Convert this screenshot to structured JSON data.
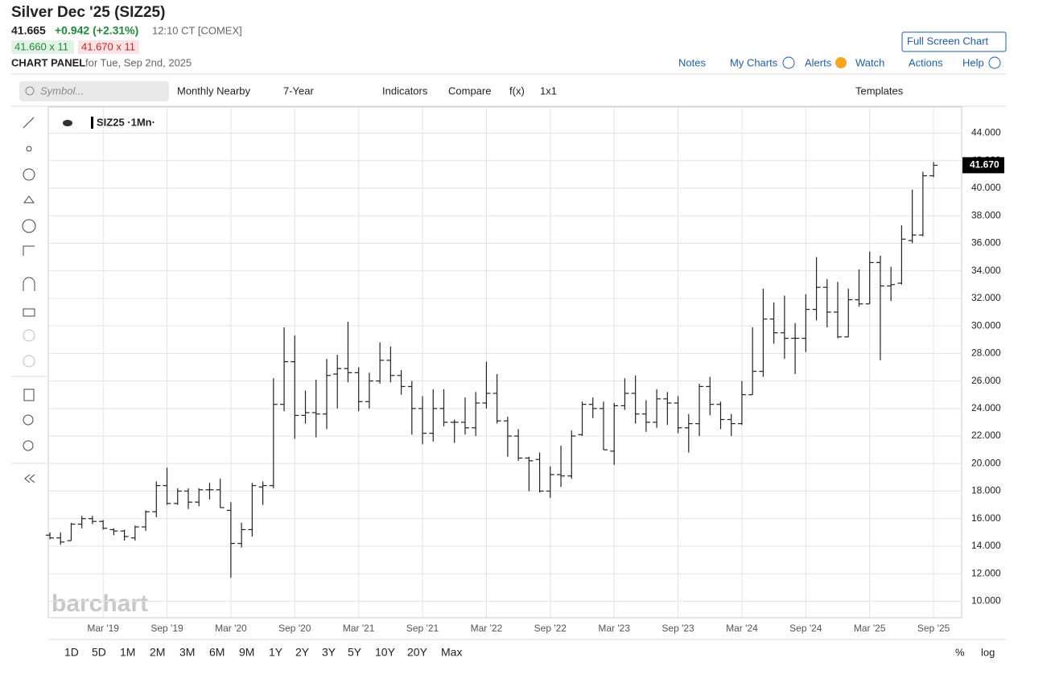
{
  "header": {
    "title": "Silver Dec '25 (SIZ25)",
    "last": "41.665",
    "change": "+0.942 (+2.31%)",
    "time": "12:10 CT [COMEX]",
    "bid": "41.660 x 11",
    "ask": "41.670 x 11",
    "panel": "CHART PANEL",
    "panel_date": "for Tue, Sep 2nd, 2025",
    "full_screen": "Full Screen Chart",
    "links": [
      "Notes",
      "My Charts",
      "Alerts",
      "Watch",
      "Actions",
      "Help"
    ]
  },
  "toolbar": {
    "symbol": "Symbol...",
    "items": [
      "Monthly Nearby",
      "7-Year",
      "Indicators",
      "Compare",
      "f(x)",
      "1x1"
    ],
    "templates": "Templates"
  },
  "ranges": [
    "1D",
    "5D",
    "1M",
    "2M",
    "3M",
    "6M",
    "9M",
    "1Y",
    "2Y",
    "3Y",
    "5Y",
    "10Y",
    "20Y",
    "Max"
  ],
  "footer": {
    "percent": "%",
    "log": "log"
  },
  "watermark": "barchart",
  "chart_data": {
    "type": "ohlc",
    "legend": "SIZ25 ·1Mn·",
    "color": "#222222",
    "x": [
      "2018-10",
      "2018-11",
      "2018-12",
      "2019-01",
      "2019-02",
      "2019-03",
      "2019-04",
      "2019-05",
      "2019-06",
      "2019-07",
      "2019-08",
      "2019-09",
      "2019-10",
      "2019-11",
      "2019-12",
      "2020-01",
      "2020-02",
      "2020-03",
      "2020-04",
      "2020-05",
      "2020-06",
      "2020-07",
      "2020-08",
      "2020-09",
      "2020-10",
      "2020-11",
      "2020-12",
      "2021-01",
      "2021-02",
      "2021-03",
      "2021-04",
      "2021-05",
      "2021-06",
      "2021-07",
      "2021-08",
      "2021-09",
      "2021-10",
      "2021-11",
      "2021-12",
      "2022-01",
      "2022-02",
      "2022-03",
      "2022-04",
      "2022-05",
      "2022-06",
      "2022-07",
      "2022-08",
      "2022-09",
      "2022-10",
      "2022-11",
      "2022-12",
      "2023-01",
      "2023-02",
      "2023-03",
      "2023-04",
      "2023-05",
      "2023-06",
      "2023-07",
      "2023-08",
      "2023-09",
      "2023-10",
      "2023-11",
      "2023-12",
      "2024-01",
      "2024-02",
      "2024-03",
      "2024-04",
      "2024-05",
      "2024-06",
      "2024-07",
      "2024-08",
      "2024-09",
      "2024-10",
      "2024-11",
      "2024-12",
      "2025-01",
      "2025-02",
      "2025-03",
      "2025-04",
      "2025-05",
      "2025-06",
      "2025-07",
      "2025-08",
      "2025-09"
    ],
    "open": [
      14.8,
      14.6,
      14.4,
      15.6,
      16.0,
      15.8,
      15.2,
      15.1,
      14.6,
      15.4,
      16.5,
      18.4,
      17.1,
      18.0,
      17.2,
      18.1,
      18.1,
      16.6,
      14.2,
      15.2,
      18.3,
      18.4,
      24.3,
      27.4,
      23.5,
      23.7,
      23.6,
      26.5,
      26.9,
      26.6,
      24.5,
      26.0,
      27.5,
      26.4,
      25.6,
      24.0,
      22.2,
      24.0,
      23.0,
      23.0,
      22.6,
      24.4,
      25.1,
      23.1,
      22.0,
      20.4,
      20.3,
      18.0,
      19.2,
      19.1,
      22.1,
      24.3,
      24.0,
      20.9,
      24.2,
      25.1,
      23.6,
      23.0,
      24.7,
      24.4,
      22.6,
      22.9,
      25.6,
      24.3,
      23.2,
      22.9,
      25.0,
      26.7,
      30.5,
      29.5,
      29.1,
      29.1,
      31.2,
      32.8,
      31.0,
      29.2,
      31.9,
      31.6,
      34.6,
      32.9,
      33.1,
      36.2,
      36.6,
      40.9
    ],
    "high": [
      15.0,
      15.0,
      15.7,
      16.2,
      16.2,
      15.9,
      15.3,
      15.2,
      15.5,
      16.6,
      18.7,
      19.7,
      18.2,
      18.2,
      18.2,
      18.6,
      18.9,
      17.2,
      15.7,
      18.6,
      18.7,
      26.2,
      29.9,
      29.3,
      25.3,
      26.1,
      27.6,
      27.9,
      30.3,
      27.0,
      26.6,
      28.8,
      28.5,
      26.8,
      26.0,
      24.9,
      25.4,
      25.4,
      23.2,
      24.8,
      25.2,
      27.4,
      26.5,
      23.4,
      22.5,
      20.5,
      20.8,
      19.8,
      21.3,
      22.4,
      24.5,
      24.8,
      24.5,
      24.4,
      26.2,
      26.4,
      24.6,
      25.4,
      25.2,
      24.9,
      23.6,
      25.8,
      26.3,
      24.5,
      23.6,
      26.0,
      29.9,
      32.7,
      31.7,
      32.2,
      30.2,
      32.3,
      35.0,
      33.4,
      33.2,
      32.7,
      34.1,
      35.4,
      35.1,
      34.3,
      37.3,
      39.9,
      41.2,
      41.9
    ],
    "low": [
      14.5,
      14.1,
      14.4,
      15.3,
      15.6,
      15.2,
      14.8,
      14.4,
      14.4,
      15.1,
      16.1,
      17.0,
      17.0,
      16.7,
      16.9,
      17.4,
      16.8,
      11.7,
      13.9,
      14.7,
      17.0,
      18.2,
      23.8,
      21.8,
      22.9,
      21.9,
      22.5,
      24.0,
      25.9,
      23.8,
      24.0,
      25.8,
      25.9,
      25.0,
      22.1,
      21.4,
      21.6,
      22.7,
      21.5,
      22.1,
      22.0,
      24.0,
      22.9,
      20.5,
      20.2,
      18.0,
      17.9,
      17.5,
      18.3,
      18.9,
      22.0,
      23.3,
      21.0,
      19.9,
      23.9,
      22.9,
      22.3,
      22.6,
      22.8,
      22.2,
      20.8,
      22.0,
      23.5,
      22.5,
      22.0,
      22.8,
      25.0,
      26.3,
      28.7,
      27.6,
      26.5,
      28.1,
      30.4,
      29.9,
      29.1,
      29.2,
      31.4,
      31.6,
      27.5,
      31.8,
      33.0,
      36.0,
      36.5,
      40.8
    ],
    "close": [
      14.6,
      14.3,
      15.6,
      16.0,
      15.8,
      15.3,
      15.1,
      14.7,
      15.4,
      16.5,
      18.4,
      17.1,
      18.0,
      17.2,
      18.1,
      18.1,
      16.8,
      14.2,
      15.2,
      18.4,
      18.4,
      24.3,
      27.4,
      23.5,
      23.7,
      23.6,
      26.4,
      26.9,
      26.6,
      24.5,
      26.0,
      27.5,
      26.4,
      25.6,
      24.0,
      22.2,
      24.0,
      23.0,
      23.0,
      22.6,
      24.4,
      25.1,
      23.1,
      22.0,
      20.4,
      20.2,
      18.0,
      19.2,
      19.1,
      22.0,
      24.3,
      24.0,
      21.0,
      24.2,
      25.1,
      23.6,
      23.0,
      24.7,
      24.4,
      22.6,
      22.9,
      25.6,
      24.3,
      23.2,
      22.9,
      25.0,
      26.7,
      30.5,
      29.5,
      29.1,
      29.1,
      31.2,
      32.8,
      31.0,
      29.2,
      31.9,
      31.6,
      34.6,
      32.9,
      33.0,
      36.3,
      36.6,
      40.9,
      41.665
    ],
    "last_price": {
      "value": 41.67,
      "label": "41.670"
    },
    "ylim": [
      8.8,
      45.9
    ],
    "yticks": [
      {
        "value": 10,
        "label": "10.000"
      },
      {
        "value": 12,
        "label": "12.000"
      },
      {
        "value": 14,
        "label": "14.000"
      },
      {
        "value": 16,
        "label": "16.000"
      },
      {
        "value": 18,
        "label": "18.000"
      },
      {
        "value": 20,
        "label": "20.000"
      },
      {
        "value": 22,
        "label": "22.000"
      },
      {
        "value": 24,
        "label": "24.000"
      },
      {
        "value": 26,
        "label": "26.000"
      },
      {
        "value": 28,
        "label": "28.000"
      },
      {
        "value": 30,
        "label": "30.000"
      },
      {
        "value": 32,
        "label": "32.000"
      },
      {
        "value": 34,
        "label": "34.000"
      },
      {
        "value": 36,
        "label": "36.000"
      },
      {
        "value": 38,
        "label": "38.000"
      },
      {
        "value": 40,
        "label": "40.000"
      },
      {
        "value": 42,
        "label": "42.000"
      },
      {
        "value": 44,
        "label": "44.000"
      }
    ],
    "xticks": [
      {
        "value": "2019-03",
        "label": "Mar '19"
      },
      {
        "value": "2019-09",
        "label": "Sep '19"
      },
      {
        "value": "2020-03",
        "label": "Mar '20"
      },
      {
        "value": "2020-09",
        "label": "Sep '20"
      },
      {
        "value": "2021-03",
        "label": "Mar '21"
      },
      {
        "value": "2021-09",
        "label": "Sep '21"
      },
      {
        "value": "2022-03",
        "label": "Mar '22"
      },
      {
        "value": "2022-09",
        "label": "Sep '22"
      },
      {
        "value": "2023-03",
        "label": "Mar '23"
      },
      {
        "value": "2023-09",
        "label": "Sep '23"
      },
      {
        "value": "2024-03",
        "label": "Mar '24"
      },
      {
        "value": "2024-09",
        "label": "Sep '24"
      },
      {
        "value": "2025-03",
        "label": "Mar '25"
      },
      {
        "value": "2025-09",
        "label": "Sep '25"
      }
    ],
    "grid": true
  }
}
